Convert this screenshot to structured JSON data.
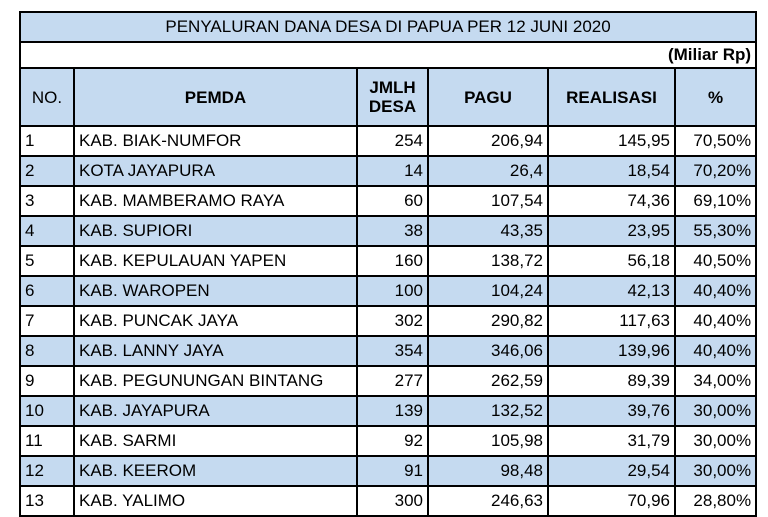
{
  "title": "PENYALURAN DANA DESA DI PAPUA PER 12 JUNI 2020",
  "unit": "(Miliar Rp)",
  "columns": {
    "no": "NO.",
    "pemda": "PEMDA",
    "desa_line1": "JMLH",
    "desa_line2": "DESA",
    "pagu": "PAGU",
    "realisasi": "REALISASI",
    "pct": "%"
  },
  "rows": [
    {
      "no": "1",
      "pemda": "KAB. BIAK-NUMFOR",
      "desa": "254",
      "pagu": "206,94",
      "realisasi": "145,95",
      "pct": "70,50%"
    },
    {
      "no": "2",
      "pemda": "KOTA JAYAPURA",
      "desa": "14",
      "pagu": "26,4",
      "realisasi": "18,54",
      "pct": "70,20%"
    },
    {
      "no": "3",
      "pemda": "KAB. MAMBERAMO RAYA",
      "desa": "60",
      "pagu": "107,54",
      "realisasi": "74,36",
      "pct": "69,10%"
    },
    {
      "no": "4",
      "pemda": "KAB. SUPIORI",
      "desa": "38",
      "pagu": "43,35",
      "realisasi": "23,95",
      "pct": "55,30%"
    },
    {
      "no": "5",
      "pemda": "KAB. KEPULAUAN YAPEN",
      "desa": "160",
      "pagu": "138,72",
      "realisasi": "56,18",
      "pct": "40,50%"
    },
    {
      "no": "6",
      "pemda": "KAB. WAROPEN",
      "desa": "100",
      "pagu": "104,24",
      "realisasi": "42,13",
      "pct": "40,40%"
    },
    {
      "no": "7",
      "pemda": "KAB. PUNCAK JAYA",
      "desa": "302",
      "pagu": "290,82",
      "realisasi": "117,63",
      "pct": "40,40%"
    },
    {
      "no": "8",
      "pemda": "KAB. LANNY JAYA",
      "desa": "354",
      "pagu": "346,06",
      "realisasi": "139,96",
      "pct": "40,40%"
    },
    {
      "no": "9",
      "pemda": "KAB. PEGUNUNGAN BINTANG",
      "desa": "277",
      "pagu": "262,59",
      "realisasi": "89,39",
      "pct": "34,00%"
    },
    {
      "no": "10",
      "pemda": "KAB. JAYAPURA",
      "desa": "139",
      "pagu": "132,52",
      "realisasi": "39,76",
      "pct": "30,00%"
    },
    {
      "no": "11",
      "pemda": "KAB. SARMI",
      "desa": "92",
      "pagu": "105,98",
      "realisasi": "31,79",
      "pct": "30,00%"
    },
    {
      "no": "12",
      "pemda": "KAB. KEEROM",
      "desa": "91",
      "pagu": "98,48",
      "realisasi": "29,54",
      "pct": "30,00%"
    },
    {
      "no": "13",
      "pemda": "KAB. YALIMO",
      "desa": "300",
      "pagu": "246,63",
      "realisasi": "70,96",
      "pct": "28,80%"
    }
  ]
}
